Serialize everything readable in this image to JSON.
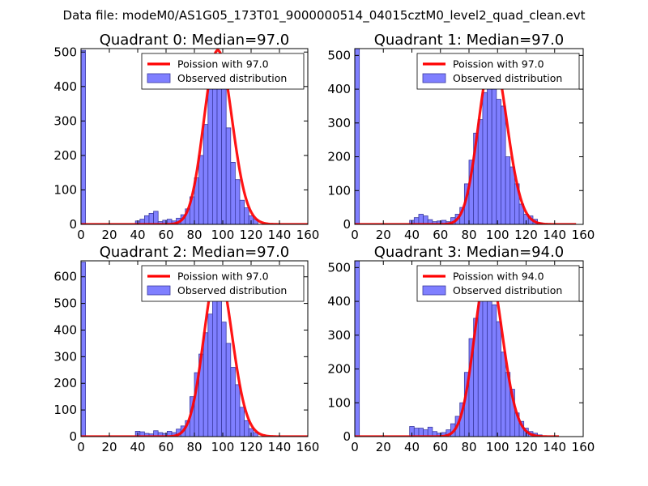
{
  "figure": {
    "suptitle": "Data file: modeM0/AS1G05_173T01_9000000514_04015cztM0_level2_quad_clean.evt"
  },
  "colors": {
    "bars": "#7f7fff",
    "bar_edge": "#3a3aa0",
    "poisson": "#ff0000",
    "background": "#ffffff"
  },
  "chart_data": [
    {
      "type": "bar",
      "title": "Quadrant 0: Median=97.0",
      "median": 97.0,
      "xlim": [
        0,
        160
      ],
      "ylim": [
        0,
        510
      ],
      "xticks": [
        0,
        20,
        40,
        60,
        80,
        100,
        120,
        140,
        160
      ],
      "yticks": [
        0,
        100,
        200,
        300,
        400,
        500
      ],
      "bin_width": 3.2,
      "bins_start": [
        0,
        38.4,
        41.6,
        44.8,
        48,
        51.2,
        54.4,
        57.6,
        60.8,
        64,
        67.2,
        70.4,
        73.6,
        76.8,
        80,
        83.2,
        86.4,
        89.6,
        92.8,
        96,
        99.2,
        102.4,
        105.6,
        108.8,
        112,
        115.2,
        118.4,
        121.6
      ],
      "counts": [
        505,
        10,
        15,
        25,
        32,
        38,
        8,
        12,
        15,
        10,
        18,
        28,
        45,
        80,
        135,
        200,
        290,
        400,
        475,
        470,
        440,
        280,
        180,
        130,
        70,
        48,
        25,
        15
      ],
      "series": [
        {
          "name": "Poission with 97.0",
          "lambda": 97.0,
          "peak": 505,
          "xmax": 160
        },
        {
          "name": "Observed distribution"
        }
      ],
      "legend": "upper-right"
    },
    {
      "type": "bar",
      "title": "Quadrant 1: Median=97.0",
      "median": 97.0,
      "xlim": [
        0,
        160
      ],
      "ylim": [
        0,
        520
      ],
      "xticks": [
        0,
        20,
        40,
        60,
        80,
        100,
        120,
        140,
        160
      ],
      "yticks": [
        0,
        100,
        200,
        300,
        400,
        500
      ],
      "bin_width": 3.2,
      "bins_start": [
        0,
        38.4,
        41.6,
        44.8,
        48,
        51.2,
        54.4,
        57.6,
        60.8,
        64,
        67.2,
        70.4,
        73.6,
        76.8,
        80,
        83.2,
        86.4,
        89.6,
        92.8,
        96,
        99.2,
        102.4,
        105.6,
        108.8,
        112,
        115.2,
        118.4,
        121.6,
        124.8,
        128
      ],
      "counts": [
        520,
        12,
        20,
        30,
        25,
        14,
        8,
        10,
        12,
        8,
        20,
        30,
        50,
        120,
        190,
        270,
        310,
        390,
        470,
        490,
        370,
        350,
        200,
        170,
        120,
        60,
        30,
        25,
        15,
        5
      ],
      "series": [
        {
          "name": "Poission with 97.0",
          "lambda": 97.0,
          "peak": 500,
          "xmax": 155
        },
        {
          "name": "Observed distribution"
        }
      ],
      "legend": "upper-right"
    },
    {
      "type": "bar",
      "title": "Quadrant 2: Median=97.0",
      "median": 97.0,
      "xlim": [
        0,
        160
      ],
      "ylim": [
        0,
        660
      ],
      "xticks": [
        0,
        20,
        40,
        60,
        80,
        100,
        120,
        140,
        160
      ],
      "yticks": [
        0,
        100,
        200,
        300,
        400,
        500,
        600
      ],
      "bin_width": 3.2,
      "bins_start": [
        0,
        38.4,
        41.6,
        44.8,
        48,
        51.2,
        54.4,
        57.6,
        60.8,
        64,
        67.2,
        70.4,
        73.6,
        76.8,
        80,
        83.2,
        86.4,
        89.6,
        92.8,
        96,
        99.2,
        102.4,
        105.6,
        108.8,
        112,
        115.2,
        118.4,
        121.6
      ],
      "counts": [
        655,
        20,
        18,
        12,
        10,
        22,
        15,
        12,
        20,
        15,
        28,
        40,
        60,
        150,
        240,
        310,
        390,
        460,
        590,
        560,
        430,
        350,
        260,
        195,
        110,
        60,
        30,
        15
      ],
      "series": [
        {
          "name": "Poission with 97.0",
          "lambda": 97.0,
          "peak": 630,
          "xmax": 160
        },
        {
          "name": "Observed distribution"
        }
      ],
      "legend": "upper-right"
    },
    {
      "type": "bar",
      "title": "Quadrant 3: Median=94.0",
      "median": 94.0,
      "xlim": [
        0,
        160
      ],
      "ylim": [
        0,
        520
      ],
      "xticks": [
        0,
        20,
        40,
        60,
        80,
        100,
        120,
        140,
        160
      ],
      "yticks": [
        0,
        100,
        200,
        300,
        400,
        500
      ],
      "bin_width": 3.2,
      "bins_start": [
        0,
        38.4,
        41.6,
        44.8,
        48,
        51.2,
        54.4,
        57.6,
        60.8,
        64,
        67.2,
        70.4,
        73.6,
        76.8,
        80,
        83.2,
        86.4,
        89.6,
        92.8,
        96,
        99.2,
        102.4,
        105.6,
        108.8,
        112,
        115.2,
        118.4,
        121.6,
        124.8,
        128
      ],
      "counts": [
        520,
        30,
        25,
        25,
        20,
        28,
        15,
        10,
        12,
        20,
        38,
        60,
        100,
        190,
        290,
        350,
        410,
        480,
        490,
        390,
        340,
        250,
        190,
        140,
        70,
        45,
        25,
        15,
        10,
        5
      ],
      "series": [
        {
          "name": "Poission with 94.0",
          "lambda": 94.0,
          "peak": 500,
          "xmax": 143
        },
        {
          "name": "Observed distribution"
        }
      ],
      "legend": "upper-right"
    }
  ]
}
